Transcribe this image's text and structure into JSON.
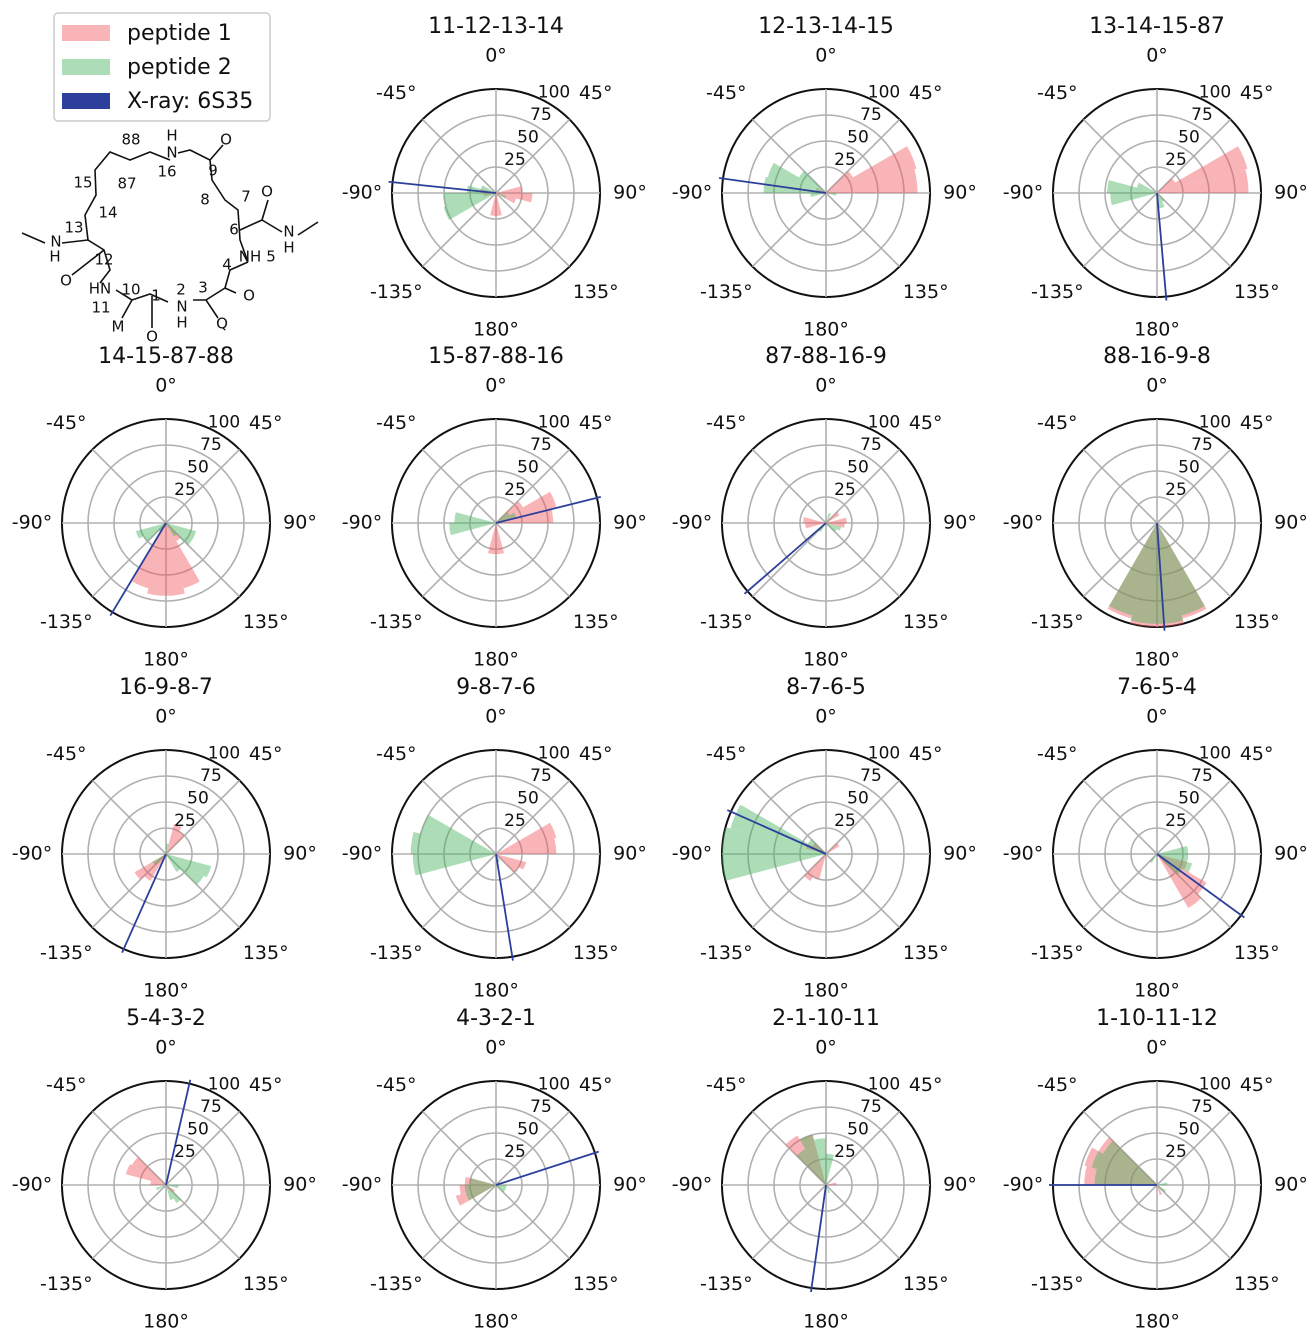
{
  "legend": [
    {
      "name": "peptide 1",
      "color": "#f25861"
    },
    {
      "name": "peptide 2",
      "color": "#47b35e"
    },
    {
      "name": "X-ray: 6S35",
      "color": "#2b3f9b"
    }
  ],
  "bar_opacity": 0.45,
  "bins": [
    -180,
    -165,
    -150,
    -135,
    -120,
    -105,
    -90,
    -75,
    -60,
    -45,
    -30,
    -15,
    0,
    15,
    30,
    45,
    60,
    75,
    90,
    105,
    120,
    135,
    150,
    165,
    180
  ],
  "rlim": [
    0,
    100
  ],
  "rticks": [
    25,
    50,
    75,
    100
  ],
  "theta_ticks": [
    {
      "value": 0,
      "label": "0°"
    },
    {
      "value": 45,
      "label": "45°"
    },
    {
      "value": 90,
      "label": "90°"
    },
    {
      "value": 135,
      "label": "135°"
    },
    {
      "value": 180,
      "label": "180°"
    },
    {
      "value": -135,
      "label": "-135°"
    },
    {
      "value": -90,
      "label": "-90°"
    },
    {
      "value": -45,
      "label": "-45°"
    }
  ],
  "structure": {
    "labels": [
      "H",
      "N",
      "O",
      "88",
      "9",
      "16",
      "15",
      "87",
      "8",
      "7",
      "O",
      "14",
      "13",
      "6",
      "N",
      "H",
      "N",
      "H",
      "NH",
      "5",
      "12",
      "4",
      "O",
      "HN",
      "10",
      "1",
      "2",
      "3",
      "O",
      "11",
      "N",
      "H",
      "M",
      "Q",
      "O"
    ]
  },
  "chart_data": [
    {
      "type": "polar_bar",
      "title": "11-12-13-14",
      "xray": -84,
      "series": [
        {
          "values": [
            22,
            0,
            0,
            0,
            0,
            12,
            15,
            0,
            0,
            0,
            0,
            0,
            0,
            0,
            0,
            0,
            0,
            25,
            35,
            20,
            0,
            0,
            0,
            22
          ]
        },
        {
          "values": [
            0,
            0,
            0,
            0,
            52,
            50,
            28,
            15,
            0,
            0,
            0,
            0,
            0,
            0,
            0,
            0,
            0,
            0,
            0,
            10,
            0,
            0,
            0,
            0
          ]
        }
      ]
    },
    {
      "type": "polar_bar",
      "title": "12-13-14-15",
      "xray": -82,
      "series": [
        {
          "values": [
            0,
            0,
            0,
            0,
            0,
            0,
            0,
            10,
            0,
            0,
            0,
            0,
            0,
            0,
            0,
            30,
            90,
            88,
            0,
            0,
            0,
            0,
            0,
            0
          ]
        },
        {
          "values": [
            0,
            0,
            0,
            0,
            0,
            15,
            60,
            58,
            30,
            0,
            0,
            0,
            0,
            0,
            0,
            0,
            0,
            0,
            10,
            0,
            0,
            0,
            0,
            0
          ]
        }
      ]
    },
    {
      "type": "polar_bar",
      "title": "13-14-15-87",
      "xray": 175,
      "series": [
        {
          "values": [
            0,
            0,
            0,
            0,
            0,
            0,
            0,
            0,
            0,
            0,
            0,
            0,
            0,
            0,
            0,
            20,
            90,
            88,
            0,
            0,
            0,
            0,
            0,
            0
          ]
        },
        {
          "values": [
            0,
            0,
            0,
            0,
            0,
            45,
            48,
            20,
            0,
            0,
            0,
            0,
            0,
            0,
            0,
            0,
            0,
            0,
            0,
            0,
            0,
            10,
            15,
            15
          ]
        }
      ]
    },
    {
      "type": "polar_bar",
      "title": "14-15-87-88",
      "xray": -149,
      "series": [
        {
          "values": [
            70,
            65,
            0,
            0,
            0,
            0,
            0,
            0,
            0,
            0,
            0,
            0,
            0,
            0,
            0,
            0,
            0,
            0,
            0,
            0,
            0,
            20,
            65,
            70
          ]
        },
        {
          "values": [
            0,
            0,
            10,
            25,
            30,
            0,
            0,
            0,
            0,
            0,
            0,
            0,
            0,
            0,
            0,
            0,
            0,
            0,
            0,
            30,
            30,
            15,
            0,
            0
          ]
        }
      ]
    },
    {
      "type": "polar_bar",
      "title": "15-87-88-16",
      "xray": 76,
      "series": [
        {
          "values": [
            30,
            0,
            0,
            0,
            0,
            0,
            0,
            0,
            0,
            0,
            0,
            0,
            0,
            0,
            0,
            30,
            60,
            55,
            0,
            0,
            0,
            0,
            0,
            30
          ]
        },
        {
          "values": [
            0,
            0,
            0,
            0,
            0,
            45,
            40,
            0,
            0,
            0,
            0,
            0,
            0,
            0,
            0,
            15,
            20,
            0,
            0,
            0,
            0,
            0,
            0,
            0
          ]
        }
      ]
    },
    {
      "type": "polar_bar",
      "title": "87-88-16-9",
      "xray": -131,
      "series": [
        {
          "values": [
            0,
            0,
            0,
            0,
            0,
            20,
            22,
            0,
            0,
            0,
            0,
            0,
            0,
            0,
            0,
            15,
            0,
            20,
            18,
            0,
            0,
            0,
            0,
            0
          ]
        },
        {
          "values": [
            0,
            0,
            10,
            0,
            0,
            0,
            0,
            0,
            0,
            0,
            0,
            0,
            0,
            10,
            0,
            0,
            0,
            0,
            0,
            15,
            12,
            0,
            0,
            0
          ]
        }
      ]
    },
    {
      "type": "polar_bar",
      "title": "88-16-9-8",
      "xray": 176,
      "series": [
        {
          "values": [
            100,
            95,
            0,
            0,
            0,
            0,
            0,
            0,
            0,
            0,
            0,
            0,
            0,
            0,
            0,
            0,
            0,
            0,
            0,
            0,
            0,
            0,
            95,
            100
          ]
        },
        {
          "values": [
            97,
            92,
            0,
            0,
            0,
            0,
            0,
            0,
            0,
            0,
            0,
            0,
            0,
            0,
            0,
            0,
            0,
            0,
            0,
            0,
            0,
            0,
            92,
            97
          ]
        }
      ]
    },
    {
      "type": "polar_bar",
      "title": "16-9-8-7",
      "xray": -156,
      "series": [
        {
          "values": [
            0,
            0,
            30,
            35,
            0,
            0,
            0,
            0,
            0,
            0,
            0,
            0,
            0,
            30,
            25,
            0,
            0,
            0,
            0,
            0,
            0,
            0,
            0,
            0
          ]
        },
        {
          "values": [
            0,
            0,
            0,
            15,
            0,
            0,
            0,
            0,
            0,
            0,
            0,
            0,
            10,
            0,
            0,
            0,
            0,
            0,
            0,
            45,
            42,
            20,
            0,
            0
          ]
        }
      ]
    },
    {
      "type": "polar_bar",
      "title": "9-8-7-6",
      "xray": 171,
      "series": [
        {
          "values": [
            0,
            0,
            0,
            0,
            0,
            0,
            0,
            0,
            0,
            0,
            0,
            0,
            0,
            0,
            0,
            0,
            60,
            58,
            0,
            30,
            25,
            0,
            0,
            0
          ]
        },
        {
          "values": [
            0,
            0,
            0,
            0,
            0,
            80,
            82,
            75,
            0,
            0,
            0,
            0,
            0,
            0,
            0,
            0,
            0,
            0,
            0,
            0,
            0,
            0,
            8,
            0
          ]
        }
      ]
    },
    {
      "type": "polar_bar",
      "title": "8-7-6-5",
      "xray": -66,
      "series": [
        {
          "values": [
            0,
            25,
            30,
            0,
            0,
            0,
            0,
            20,
            15,
            0,
            0,
            0,
            0,
            0,
            0,
            15,
            0,
            0,
            0,
            0,
            0,
            0,
            0,
            0
          ]
        },
        {
          "values": [
            0,
            0,
            0,
            0,
            0,
            100,
            100,
            95,
            20,
            0,
            0,
            0,
            0,
            0,
            0,
            0,
            0,
            0,
            0,
            0,
            0,
            0,
            0,
            0
          ]
        }
      ]
    },
    {
      "type": "polar_bar",
      "title": "7-6-5-4",
      "xray": 126,
      "series": [
        {
          "values": [
            0,
            0,
            0,
            0,
            0,
            0,
            0,
            0,
            0,
            0,
            0,
            0,
            0,
            0,
            0,
            0,
            0,
            0,
            0,
            30,
            55,
            60,
            0,
            0
          ]
        },
        {
          "values": [
            0,
            0,
            10,
            0,
            0,
            0,
            0,
            0,
            0,
            0,
            0,
            0,
            0,
            0,
            0,
            0,
            0,
            30,
            30,
            35,
            28,
            0,
            0,
            0
          ]
        }
      ]
    },
    {
      "type": "polar_bar",
      "title": "5-4-3-2",
      "xray": 13,
      "series": [
        {
          "values": [
            0,
            0,
            0,
            0,
            0,
            0,
            15,
            40,
            38,
            0,
            0,
            0,
            0,
            0,
            0,
            0,
            0,
            0,
            0,
            0,
            10,
            0,
            0,
            0
          ]
        },
        {
          "values": [
            0,
            0,
            0,
            0,
            10,
            0,
            0,
            0,
            0,
            0,
            0,
            0,
            0,
            0,
            0,
            0,
            0,
            0,
            12,
            0,
            0,
            20,
            15,
            0
          ]
        }
      ]
    },
    {
      "type": "polar_bar",
      "title": "4-3-2-1",
      "xray": 72,
      "series": [
        {
          "values": [
            0,
            0,
            0,
            0,
            40,
            35,
            30,
            0,
            0,
            0,
            0,
            0,
            0,
            0,
            0,
            0,
            0,
            0,
            0,
            0,
            0,
            0,
            0,
            0
          ]
        },
        {
          "values": [
            0,
            0,
            0,
            0,
            30,
            30,
            25,
            0,
            0,
            0,
            0,
            0,
            0,
            0,
            0,
            0,
            0,
            0,
            10,
            10,
            10,
            0,
            0,
            0
          ]
        }
      ]
    },
    {
      "type": "polar_bar",
      "title": "2-1-10-11",
      "xray": -172,
      "series": [
        {
          "values": [
            0,
            0,
            0,
            0,
            0,
            0,
            0,
            0,
            0,
            55,
            50,
            0,
            0,
            0,
            0,
            0,
            0,
            10,
            0,
            0,
            0,
            0,
            0,
            0
          ]
        },
        {
          "values": [
            0,
            0,
            0,
            0,
            0,
            0,
            0,
            0,
            0,
            40,
            50,
            45,
            30,
            0,
            0,
            0,
            0,
            0,
            0,
            0,
            0,
            0,
            8,
            0
          ]
        }
      ]
    },
    {
      "type": "polar_bar",
      "title": "1-10-11-12",
      "xray": -90,
      "series": [
        {
          "values": [
            0,
            0,
            0,
            0,
            0,
            0,
            70,
            72,
            65,
            0,
            0,
            0,
            0,
            0,
            0,
            0,
            0,
            0,
            0,
            0,
            0,
            0,
            10,
            0
          ]
        },
        {
          "values": [
            0,
            0,
            0,
            0,
            0,
            0,
            60,
            65,
            60,
            0,
            0,
            0,
            0,
            0,
            0,
            0,
            0,
            10,
            0,
            0,
            10,
            0,
            0,
            0
          ]
        }
      ]
    }
  ]
}
